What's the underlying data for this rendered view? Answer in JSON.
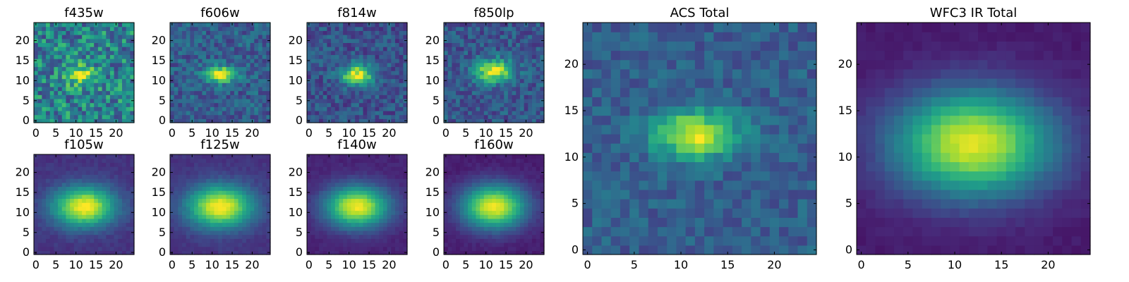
{
  "figure": {
    "background": "#ffffff",
    "colormap": "viridis",
    "colormap_stops": [
      "#440154",
      "#482878",
      "#3e4989",
      "#31688e",
      "#26828e",
      "#1f9e89",
      "#35b779",
      "#6ece58",
      "#b5de2b",
      "#fde725"
    ]
  },
  "chart_data": [
    {
      "type": "heatmap",
      "title": "f435w",
      "grid_size": 25,
      "xlim": [
        0,
        24
      ],
      "ylim": [
        0,
        24
      ],
      "xticks": [
        0,
        5,
        10,
        15,
        20
      ],
      "yticks": [
        0,
        5,
        10,
        15,
        20
      ],
      "x_tick_labels": [
        "0",
        "5",
        "10",
        "15",
        "20"
      ],
      "y_tick_labels": [
        "0",
        "5",
        "10",
        "15",
        "20"
      ],
      "peak_center": [
        11,
        11.5
      ],
      "peak_sigma": [
        2.5,
        2.0
      ],
      "peak_amplitude": 0.45,
      "background_level": 0.45,
      "noise": 0.5,
      "seed": 11
    },
    {
      "type": "heatmap",
      "title": "f606w",
      "grid_size": 25,
      "xlim": [
        0,
        24
      ],
      "ylim": [
        0,
        24
      ],
      "xticks": [
        0,
        5,
        10,
        15,
        20
      ],
      "yticks": [
        0,
        5,
        10,
        15,
        20
      ],
      "x_tick_labels": [
        "0",
        "5",
        "10",
        "15",
        "20"
      ],
      "y_tick_labels": [
        "0",
        "5",
        "10",
        "15",
        "20"
      ],
      "peak_center": [
        12,
        11.5
      ],
      "peak_sigma": [
        2.6,
        1.4
      ],
      "peak_amplitude": 0.75,
      "background_level": 0.3,
      "noise": 0.28,
      "seed": 22
    },
    {
      "type": "heatmap",
      "title": "f814w",
      "grid_size": 25,
      "xlim": [
        0,
        24
      ],
      "ylim": [
        0,
        24
      ],
      "xticks": [
        0,
        5,
        10,
        15,
        20
      ],
      "yticks": [
        0,
        5,
        10,
        15,
        20
      ],
      "x_tick_labels": [
        "0",
        "5",
        "10",
        "15",
        "20"
      ],
      "y_tick_labels": [
        "0",
        "5",
        "10",
        "15",
        "20"
      ],
      "peak_center": [
        12,
        11.5
      ],
      "peak_sigma": [
        2.8,
        1.8
      ],
      "peak_amplitude": 0.7,
      "background_level": 0.25,
      "noise": 0.26,
      "seed": 33
    },
    {
      "type": "heatmap",
      "title": "f850lp",
      "grid_size": 25,
      "xlim": [
        0,
        24
      ],
      "ylim": [
        0,
        24
      ],
      "xticks": [
        0,
        5,
        10,
        15,
        20
      ],
      "yticks": [
        0,
        5,
        10,
        15,
        20
      ],
      "x_tick_labels": [
        "0",
        "5",
        "10",
        "15",
        "20"
      ],
      "y_tick_labels": [
        "0",
        "5",
        "10",
        "15",
        "20"
      ],
      "peak_center": [
        12,
        12.5
      ],
      "peak_sigma": [
        3.2,
        2.0
      ],
      "peak_amplitude": 0.7,
      "background_level": 0.27,
      "noise": 0.26,
      "seed": 44
    },
    {
      "type": "heatmap",
      "title": "f105w",
      "grid_size": 25,
      "xlim": [
        0,
        24
      ],
      "ylim": [
        0,
        24
      ],
      "xticks": [
        0,
        5,
        10,
        15,
        20
      ],
      "yticks": [
        0,
        5,
        10,
        15,
        20
      ],
      "x_tick_labels": [
        "0",
        "5",
        "10",
        "15",
        "20"
      ],
      "y_tick_labels": [
        "0",
        "5",
        "10",
        "15",
        "20"
      ],
      "peak_center": [
        12,
        11.5
      ],
      "peak_sigma": [
        5.5,
        3.5
      ],
      "peak_amplitude": 0.85,
      "background_level": 0.15,
      "noise": 0.07,
      "seed": 55
    },
    {
      "type": "heatmap",
      "title": "f125w",
      "grid_size": 25,
      "xlim": [
        0,
        24
      ],
      "ylim": [
        0,
        24
      ],
      "xticks": [
        0,
        5,
        10,
        15,
        20
      ],
      "yticks": [
        0,
        5,
        10,
        15,
        20
      ],
      "x_tick_labels": [
        "0",
        "5",
        "10",
        "15",
        "20"
      ],
      "y_tick_labels": [
        "0",
        "5",
        "10",
        "15",
        "20"
      ],
      "peak_center": [
        12,
        11.5
      ],
      "peak_sigma": [
        5.8,
        3.7
      ],
      "peak_amplitude": 0.85,
      "background_level": 0.15,
      "noise": 0.06,
      "seed": 66
    },
    {
      "type": "heatmap",
      "title": "f140w",
      "grid_size": 25,
      "xlim": [
        0,
        24
      ],
      "ylim": [
        0,
        24
      ],
      "xticks": [
        0,
        5,
        10,
        15,
        20
      ],
      "yticks": [
        0,
        5,
        10,
        15,
        20
      ],
      "x_tick_labels": [
        "0",
        "5",
        "10",
        "15",
        "20"
      ],
      "y_tick_labels": [
        "0",
        "5",
        "10",
        "15",
        "20"
      ],
      "peak_center": [
        12,
        11.5
      ],
      "peak_sigma": [
        5.5,
        3.6
      ],
      "peak_amplitude": 0.88,
      "background_level": 0.1,
      "noise": 0.05,
      "seed": 77
    },
    {
      "type": "heatmap",
      "title": "f160w",
      "grid_size": 25,
      "xlim": [
        0,
        24
      ],
      "ylim": [
        0,
        24
      ],
      "xticks": [
        0,
        5,
        10,
        15,
        20
      ],
      "yticks": [
        0,
        5,
        10,
        15,
        20
      ],
      "x_tick_labels": [
        "0",
        "5",
        "10",
        "15",
        "20"
      ],
      "y_tick_labels": [
        "0",
        "5",
        "10",
        "15",
        "20"
      ],
      "peak_center": [
        12,
        11.5
      ],
      "peak_sigma": [
        5.6,
        3.8
      ],
      "peak_amplitude": 0.9,
      "background_level": 0.08,
      "noise": 0.05,
      "seed": 88
    },
    {
      "type": "heatmap",
      "title": "ACS Total",
      "grid_size": 25,
      "xlim": [
        0,
        24
      ],
      "ylim": [
        0,
        24
      ],
      "xticks": [
        0,
        5,
        10,
        15,
        20
      ],
      "yticks": [
        0,
        5,
        10,
        15,
        20
      ],
      "x_tick_labels": [
        "0",
        "5",
        "10",
        "15",
        "20"
      ],
      "y_tick_labels": [
        "0",
        "5",
        "10",
        "15",
        "20"
      ],
      "peak_center": [
        11.5,
        12.5
      ],
      "peak_sigma": [
        3.2,
        1.8
      ],
      "peak_amplitude": 0.65,
      "background_level": 0.3,
      "noise": 0.2,
      "seed": 99
    },
    {
      "type": "heatmap",
      "title": "WFC3 IR Total",
      "grid_size": 25,
      "xlim": [
        0,
        24
      ],
      "ylim": [
        0,
        24
      ],
      "xticks": [
        0,
        5,
        10,
        15,
        20
      ],
      "yticks": [
        0,
        5,
        10,
        15,
        20
      ],
      "x_tick_labels": [
        "0",
        "5",
        "10",
        "15",
        "20"
      ],
      "y_tick_labels": [
        "0",
        "5",
        "10",
        "15",
        "20"
      ],
      "peak_center": [
        12,
        11.5
      ],
      "peak_sigma": [
        6.0,
        4.0
      ],
      "peak_amplitude": 0.88,
      "background_level": 0.07,
      "noise": 0.04,
      "seed": 111
    }
  ]
}
